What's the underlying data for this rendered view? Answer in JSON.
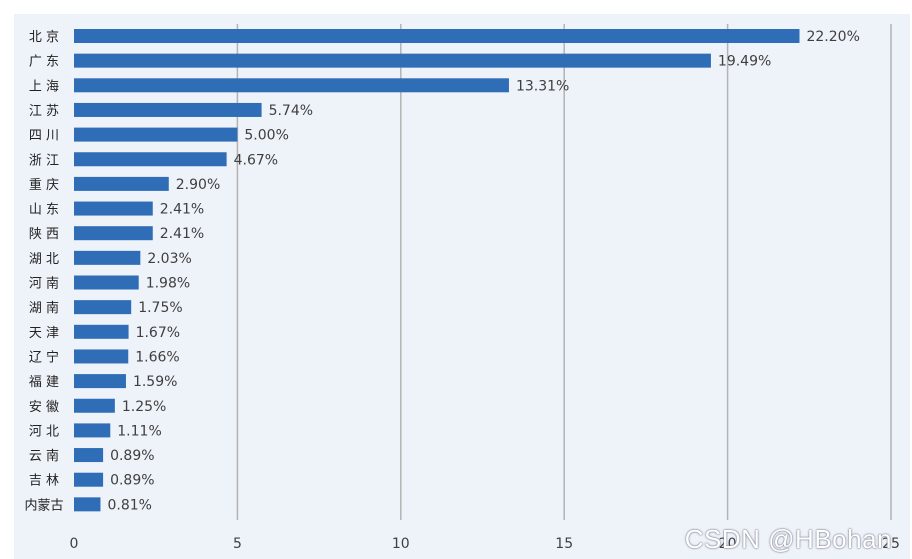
{
  "chart_data": {
    "type": "bar",
    "orientation": "horizontal",
    "categories": [
      "北 京",
      "广 东",
      "上 海",
      "江 苏",
      "四 川",
      "浙 江",
      "重 庆",
      "山 东",
      "陕 西",
      "湖 北",
      "河 南",
      "湖 南",
      "天 津",
      "辽 宁",
      "福 建",
      "安 徽",
      "河 北",
      "云 南",
      "吉 林",
      "内蒙古"
    ],
    "values": [
      22.2,
      19.49,
      13.31,
      5.74,
      5.0,
      4.67,
      2.9,
      2.41,
      2.41,
      2.03,
      1.98,
      1.75,
      1.67,
      1.66,
      1.59,
      1.25,
      1.11,
      0.89,
      0.89,
      0.81
    ],
    "value_labels": [
      "22.20%",
      "19.49%",
      "13.31%",
      "5.74%",
      "5.00%",
      "4.67%",
      "2.90%",
      "2.41%",
      "2.41%",
      "2.03%",
      "1.98%",
      "1.75%",
      "1.67%",
      "1.66%",
      "1.59%",
      "1.25%",
      "1.11%",
      "0.89%",
      "0.89%",
      "0.81%"
    ],
    "x_ticks": [
      "0",
      "5",
      "10",
      "15",
      "20",
      "25"
    ],
    "xlim": [
      0,
      25
    ],
    "grid": true,
    "bar_color": "#2f6db6",
    "title": "",
    "xlabel": "",
    "ylabel": ""
  },
  "watermark": "CSDN @HBohan",
  "colors": {
    "plot_background": "#eef2f9",
    "gridline": "#b3b3b3"
  }
}
